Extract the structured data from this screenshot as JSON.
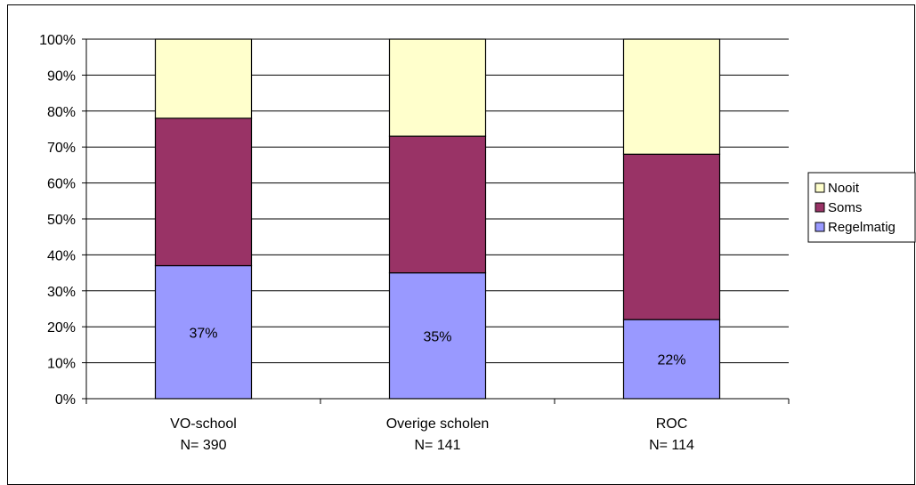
{
  "chart_data": {
    "type": "bar",
    "stacked": true,
    "percent": true,
    "categories": [
      "VO-school",
      "Overige scholen",
      "ROC"
    ],
    "category_counts": [
      "N= 390",
      "N= 141",
      "N= 114"
    ],
    "series": [
      {
        "name": "Regelmatig",
        "values": [
          37,
          35,
          22
        ],
        "color": "#9999ff",
        "data_labels": [
          "37%",
          "35%",
          "22%"
        ]
      },
      {
        "name": "Soms",
        "values": [
          41,
          38,
          46
        ],
        "color": "#993366"
      },
      {
        "name": "Nooit",
        "values": [
          22,
          27,
          32
        ],
        "color": "#ffffcc"
      }
    ],
    "legend_order": [
      "Nooit",
      "Soms",
      "Regelmatig"
    ],
    "legend_position": "right",
    "y_ticks": [
      "0%",
      "10%",
      "20%",
      "30%",
      "40%",
      "50%",
      "60%",
      "70%",
      "80%",
      "90%",
      "100%"
    ],
    "ylim": [
      0,
      100
    ],
    "grid": true,
    "title": "",
    "xlabel": "",
    "ylabel": ""
  }
}
